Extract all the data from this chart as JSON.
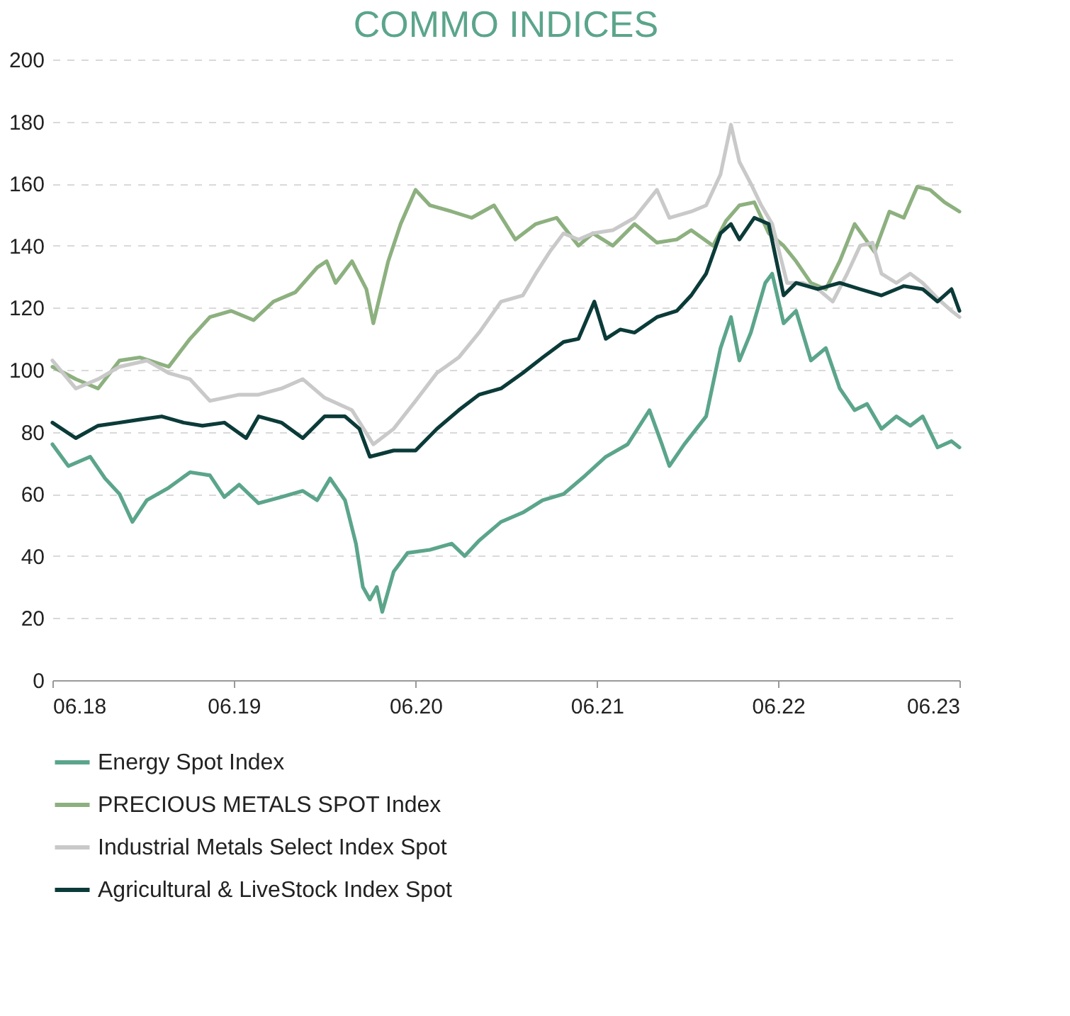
{
  "chart_data": {
    "type": "line",
    "title": "COMMO INDICES",
    "xlim": [
      "2018-06-01",
      "2023-06-01"
    ],
    "xticks": [
      {
        "value": "2018-06-01",
        "label": "06.18"
      },
      {
        "value": "2019-06-01",
        "label": "06.19"
      },
      {
        "value": "2020-06-01",
        "label": "06.20"
      },
      {
        "value": "2021-06-01",
        "label": "06.21"
      },
      {
        "value": "2022-06-01",
        "label": "06.22"
      },
      {
        "value": "2023-06-01",
        "label": "06.23"
      }
    ],
    "ylim": [
      0,
      200
    ],
    "yticks": [
      0,
      20,
      40,
      60,
      80,
      100,
      120,
      140,
      160,
      180,
      200
    ],
    "grid": "y",
    "legend": "bottom",
    "marker": "none",
    "line_style": "solid",
    "series": [
      {
        "name": "Energy Spot Index",
        "color": "#5ba58b",
        "x": [
          "2018-06-01",
          "2018-07-03",
          "2018-08-16",
          "2018-09-15",
          "2018-10-14",
          "2018-11-09",
          "2018-12-08",
          "2019-01-21",
          "2019-03-05",
          "2019-04-14",
          "2019-05-13",
          "2019-06-12",
          "2019-07-21",
          "2019-09-05",
          "2019-10-18",
          "2019-11-16",
          "2019-12-12",
          "2020-01-11",
          "2020-02-02",
          "2020-02-16",
          "2020-03-01",
          "2020-03-15",
          "2020-03-26",
          "2020-04-18",
          "2020-05-16",
          "2020-06-30",
          "2020-08-13",
          "2020-09-08",
          "2020-10-07",
          "2020-11-20",
          "2021-01-03",
          "2021-02-12",
          "2021-03-26",
          "2021-05-09",
          "2021-06-19",
          "2021-08-02",
          "2021-09-15",
          "2021-10-10",
          "2021-10-25",
          "2021-11-24",
          "2022-01-07",
          "2022-02-05",
          "2022-02-26",
          "2022-03-15",
          "2022-04-07",
          "2022-05-06",
          "2022-05-20",
          "2022-06-12",
          "2022-07-07",
          "2022-08-06",
          "2022-09-05",
          "2022-10-03",
          "2022-11-02",
          "2022-11-27",
          "2022-12-26",
          "2023-01-25",
          "2023-02-22",
          "2023-03-19",
          "2023-04-18",
          "2023-05-16",
          "2023-06-01"
        ],
        "values": [
          76,
          69,
          72,
          65,
          60,
          51,
          58,
          62,
          67,
          66,
          59,
          63,
          57,
          59,
          61,
          58,
          65,
          58,
          44,
          30,
          26,
          30,
          22,
          35,
          41,
          42,
          44,
          40,
          45,
          51,
          54,
          58,
          60,
          66,
          72,
          76,
          87,
          76,
          69,
          76,
          85,
          107,
          117,
          103,
          112,
          128,
          131,
          115,
          119,
          103,
          107,
          94,
          87,
          89,
          81,
          85,
          82,
          85,
          75,
          77,
          75
        ]
      },
      {
        "name": "PRECIOUS METALS SPOT Index",
        "color": "#8db07f",
        "x": [
          "2018-06-01",
          "2018-07-18",
          "2018-09-01",
          "2018-10-14",
          "2018-11-24",
          "2019-01-21",
          "2019-03-05",
          "2019-04-14",
          "2019-05-27",
          "2019-07-11",
          "2019-08-20",
          "2019-10-03",
          "2019-11-16",
          "2019-12-05",
          "2019-12-23",
          "2020-01-25",
          "2020-02-23",
          "2020-03-08",
          "2020-04-07",
          "2020-05-02",
          "2020-06-01",
          "2020-06-30",
          "2020-08-13",
          "2020-09-22",
          "2020-11-06",
          "2020-12-19",
          "2021-01-29",
          "2021-03-12",
          "2021-04-25",
          "2021-05-24",
          "2021-07-03",
          "2021-08-16",
          "2021-09-30",
          "2021-11-09",
          "2021-12-08",
          "2022-01-21",
          "2022-02-16",
          "2022-03-15",
          "2022-04-14",
          "2022-05-13",
          "2022-06-12",
          "2022-07-07",
          "2022-08-06",
          "2022-09-05",
          "2022-10-03",
          "2022-11-02",
          "2022-12-12",
          "2023-01-11",
          "2023-02-09",
          "2023-03-08",
          "2023-04-03",
          "2023-05-02",
          "2023-06-01"
        ],
        "values": [
          101,
          97,
          94,
          103,
          104,
          101,
          110,
          117,
          119,
          116,
          122,
          125,
          133,
          135,
          128,
          135,
          126,
          115,
          135,
          147,
          158,
          153,
          151,
          149,
          153,
          142,
          147,
          149,
          140,
          144,
          140,
          147,
          141,
          142,
          145,
          140,
          148,
          153,
          154,
          144,
          140,
          135,
          128,
          126,
          135,
          147,
          138,
          151,
          149,
          159,
          158,
          154,
          151
        ]
      },
      {
        "name": "Industrial Metals Select Index Spot",
        "color": "#c9c9c9",
        "x": [
          "2018-06-01",
          "2018-07-18",
          "2018-09-01",
          "2018-10-14",
          "2018-12-08",
          "2019-01-21",
          "2019-03-05",
          "2019-04-14",
          "2019-06-12",
          "2019-07-21",
          "2019-09-05",
          "2019-10-18",
          "2019-12-01",
          "2020-01-25",
          "2020-03-08",
          "2020-04-18",
          "2020-06-01",
          "2020-07-14",
          "2020-08-27",
          "2020-10-07",
          "2020-11-20",
          "2021-01-03",
          "2021-01-29",
          "2021-02-26",
          "2021-03-26",
          "2021-04-25",
          "2021-05-24",
          "2021-07-03",
          "2021-08-16",
          "2021-09-30",
          "2021-10-25",
          "2021-12-08",
          "2022-01-07",
          "2022-02-05",
          "2022-02-26",
          "2022-03-15",
          "2022-04-07",
          "2022-04-28",
          "2022-05-20",
          "2022-06-19",
          "2022-07-21",
          "2022-08-20",
          "2022-09-19",
          "2022-10-18",
          "2022-11-13",
          "2022-12-08",
          "2022-12-26",
          "2023-01-25",
          "2023-02-22",
          "2023-03-19",
          "2023-04-18",
          "2023-05-16",
          "2023-06-01"
        ],
        "values": [
          103,
          94,
          97,
          101,
          103,
          99,
          97,
          90,
          92,
          92,
          94,
          97,
          91,
          87,
          76,
          81,
          90,
          99,
          104,
          112,
          122,
          124,
          131,
          138,
          144,
          142,
          144,
          145,
          149,
          158,
          149,
          151,
          153,
          163,
          179,
          167,
          160,
          153,
          147,
          128,
          128,
          126,
          122,
          131,
          140,
          141,
          131,
          128,
          131,
          128,
          123,
          119,
          117
        ]
      },
      {
        "name": "Agricultural & LiveStock Index Spot",
        "color": "#0b3b39",
        "x": [
          "2018-06-01",
          "2018-07-18",
          "2018-09-01",
          "2018-10-14",
          "2018-11-24",
          "2019-01-07",
          "2019-02-20",
          "2019-03-30",
          "2019-05-13",
          "2019-06-26",
          "2019-07-21",
          "2019-09-05",
          "2019-10-18",
          "2019-12-01",
          "2020-01-11",
          "2020-02-09",
          "2020-03-01",
          "2020-04-18",
          "2020-06-01",
          "2020-07-14",
          "2020-08-27",
          "2020-10-07",
          "2020-11-20",
          "2021-01-03",
          "2021-02-12",
          "2021-03-26",
          "2021-04-25",
          "2021-05-27",
          "2021-06-19",
          "2021-07-18",
          "2021-08-16",
          "2021-09-30",
          "2021-11-09",
          "2021-12-08",
          "2022-01-07",
          "2022-02-05",
          "2022-02-26",
          "2022-03-15",
          "2022-04-14",
          "2022-05-13",
          "2022-06-12",
          "2022-07-07",
          "2022-08-20",
          "2022-10-03",
          "2022-11-13",
          "2022-12-26",
          "2023-02-09",
          "2023-03-19",
          "2023-04-18",
          "2023-05-16",
          "2023-06-01"
        ],
        "values": [
          83,
          78,
          82,
          83,
          84,
          85,
          83,
          82,
          83,
          78,
          85,
          83,
          78,
          85,
          85,
          81,
          72,
          74,
          74,
          81,
          87,
          92,
          94,
          99,
          104,
          109,
          110,
          122,
          110,
          113,
          112,
          117,
          119,
          124,
          131,
          144,
          147,
          142,
          149,
          147,
          124,
          128,
          126,
          128,
          126,
          124,
          127,
          126,
          122,
          126,
          119
        ]
      }
    ]
  }
}
